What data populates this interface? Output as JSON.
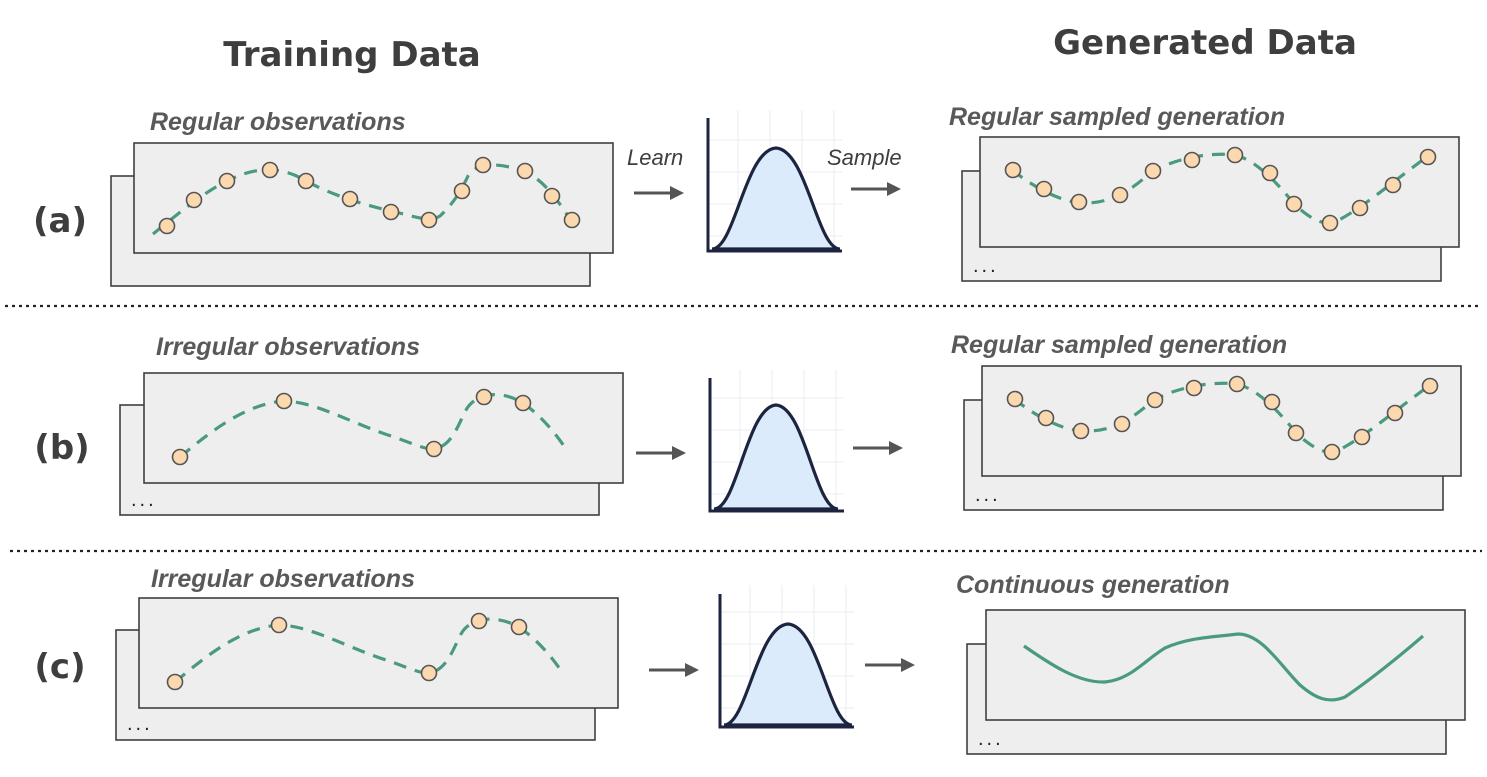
{
  "headers": {
    "training": "Training Data",
    "generated": "Generated Data"
  },
  "rows": [
    {
      "label": "(a)",
      "training_caption": "Regular observations",
      "generated_caption": "Regular sampled generation",
      "learn_text": "Learn",
      "sample_text": "Sample"
    },
    {
      "label": "(b)",
      "training_caption": "Irregular observations",
      "generated_caption": "Regular sampled generation"
    },
    {
      "label": "(c)",
      "training_caption": "Irregular observations",
      "generated_caption": "Continuous generation"
    }
  ],
  "ellipsis": "...",
  "colors": {
    "curve": "#4a9a80",
    "observation": "#fbd8ad",
    "distribution_fill": "#dcebfb",
    "distribution_stroke": "#1c2440"
  }
}
